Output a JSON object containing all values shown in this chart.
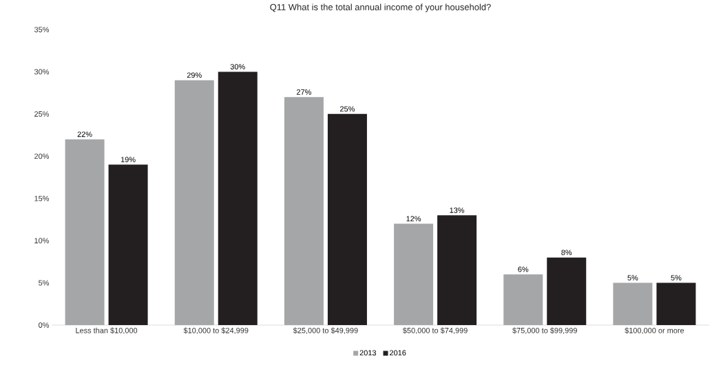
{
  "chart_data": {
    "type": "bar",
    "title": "Q11 What is the total annual income of your household?",
    "categories": [
      "Less than $10,000",
      "$10,000 to $24,999",
      "$25,000 to $49,999",
      "$50,000 to $74,999",
      "$75,000 to $99,999",
      "$100,000 or more"
    ],
    "series": [
      {
        "name": "2013",
        "color": "#a5a6a8",
        "values": [
          22,
          29,
          27,
          12,
          6,
          5
        ],
        "value_labels": [
          "22%",
          "29%",
          "27%",
          "12%",
          "6%",
          "5%"
        ]
      },
      {
        "name": "2016",
        "color": "#231f20",
        "values": [
          19,
          30,
          25,
          13,
          8,
          5
        ],
        "value_labels": [
          "19%",
          "30%",
          "25%",
          "13%",
          "8%",
          "5%"
        ]
      }
    ],
    "ylim": [
      0,
      35
    ],
    "yticks": [
      {
        "value": 0,
        "label": "0%"
      },
      {
        "value": 5,
        "label": "5%"
      },
      {
        "value": 10,
        "label": "10%"
      },
      {
        "value": 15,
        "label": "15%"
      },
      {
        "value": 20,
        "label": "20%"
      },
      {
        "value": 25,
        "label": "25%"
      },
      {
        "value": 30,
        "label": "30%"
      },
      {
        "value": 35,
        "label": "35%"
      }
    ],
    "grid": false,
    "legend": "bottom"
  }
}
